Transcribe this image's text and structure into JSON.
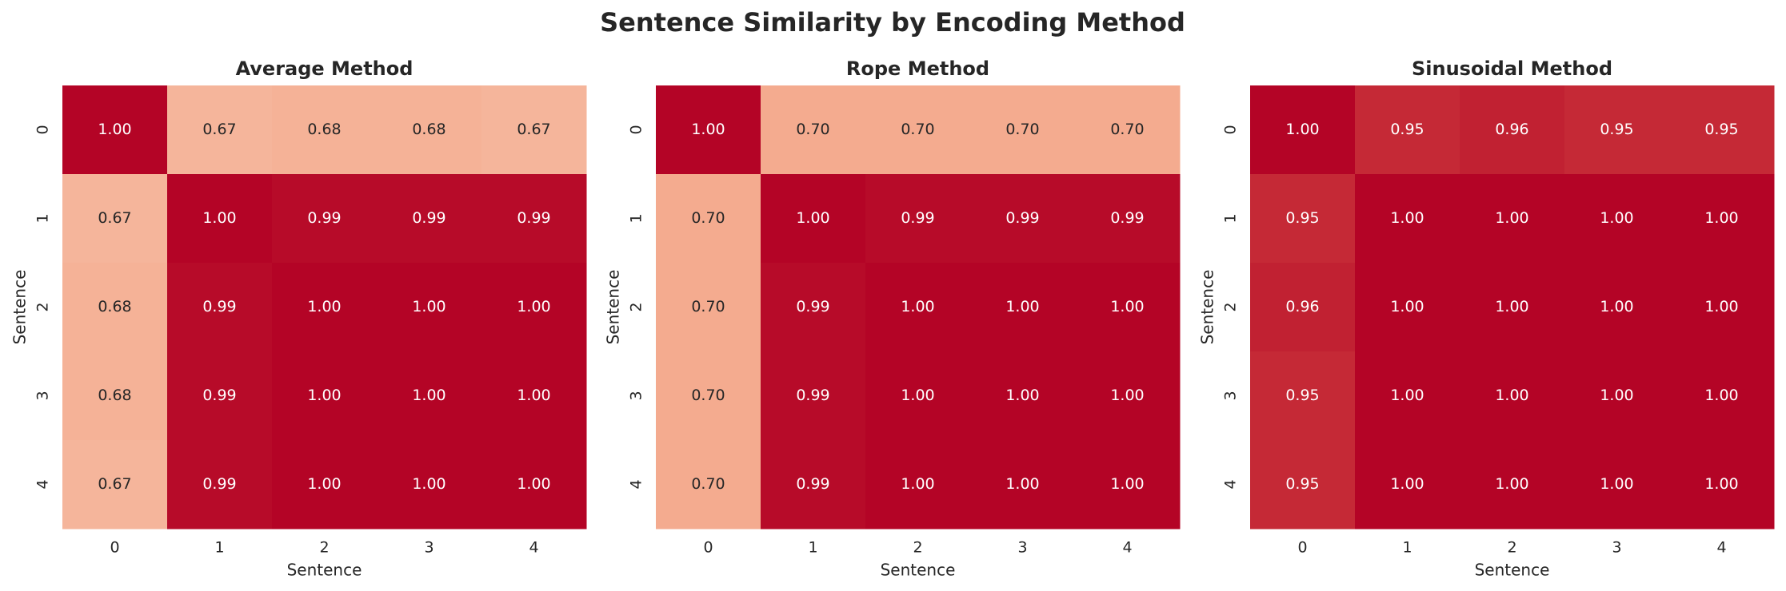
{
  "title": "Sentence Similarity by Encoding Method",
  "chart_data": [
    {
      "type": "heatmap",
      "title": "Average Method",
      "xlabel": "Sentence",
      "ylabel": "Sentence",
      "x_categories": [
        0,
        1,
        2,
        3,
        4
      ],
      "y_categories": [
        0,
        1,
        2,
        3,
        4
      ],
      "colormap": "coolwarm",
      "clim": [
        0,
        1
      ],
      "values": [
        [
          1,
          0.67,
          0.68,
          0.68,
          0.67
        ],
        [
          0.67,
          1,
          0.99,
          0.99,
          0.99
        ],
        [
          0.68,
          0.99,
          1,
          1,
          1
        ],
        [
          0.68,
          0.99,
          1,
          1,
          1
        ],
        [
          0.67,
          0.99,
          1,
          1,
          1
        ]
      ],
      "value_labels": [
        [
          "1.00",
          "0.67",
          "0.68",
          "0.68",
          "0.67"
        ],
        [
          "0.67",
          "1.00",
          "0.99",
          "0.99",
          "0.99"
        ],
        [
          "0.68",
          "0.99",
          "1.00",
          "1.00",
          "1.00"
        ],
        [
          "0.68",
          "0.99",
          "1.00",
          "1.00",
          "1.00"
        ],
        [
          "0.67",
          "0.99",
          "1.00",
          "1.00",
          "1.00"
        ]
      ]
    },
    {
      "type": "heatmap",
      "title": "Rope Method",
      "xlabel": "Sentence",
      "ylabel": "Sentence",
      "x_categories": [
        0,
        1,
        2,
        3,
        4
      ],
      "y_categories": [
        0,
        1,
        2,
        3,
        4
      ],
      "colormap": "coolwarm",
      "clim": [
        0,
        1
      ],
      "values": [
        [
          1,
          0.7,
          0.7,
          0.7,
          0.7
        ],
        [
          0.7,
          1,
          0.99,
          0.99,
          0.99
        ],
        [
          0.7,
          0.99,
          1,
          1,
          1
        ],
        [
          0.7,
          0.99,
          1,
          1,
          1
        ],
        [
          0.7,
          0.99,
          1,
          1,
          1
        ]
      ],
      "value_labels": [
        [
          "1.00",
          "0.70",
          "0.70",
          "0.70",
          "0.70"
        ],
        [
          "0.70",
          "1.00",
          "0.99",
          "0.99",
          "0.99"
        ],
        [
          "0.70",
          "0.99",
          "1.00",
          "1.00",
          "1.00"
        ],
        [
          "0.70",
          "0.99",
          "1.00",
          "1.00",
          "1.00"
        ],
        [
          "0.70",
          "0.99",
          "1.00",
          "1.00",
          "1.00"
        ]
      ]
    },
    {
      "type": "heatmap",
      "title": "Sinusoidal Method",
      "xlabel": "Sentence",
      "ylabel": "Sentence",
      "x_categories": [
        0,
        1,
        2,
        3,
        4
      ],
      "y_categories": [
        0,
        1,
        2,
        3,
        4
      ],
      "colormap": "coolwarm",
      "clim": [
        0,
        1
      ],
      "values": [
        [
          1,
          0.95,
          0.96,
          0.95,
          0.95
        ],
        [
          0.95,
          1,
          1,
          1,
          1
        ],
        [
          0.96,
          1,
          1,
          1,
          1
        ],
        [
          0.95,
          1,
          1,
          1,
          1
        ],
        [
          0.95,
          1,
          1,
          1,
          1
        ]
      ],
      "value_labels": [
        [
          "1.00",
          "0.95",
          "0.96",
          "0.95",
          "0.95"
        ],
        [
          "0.95",
          "1.00",
          "1.00",
          "1.00",
          "1.00"
        ],
        [
          "0.96",
          "1.00",
          "1.00",
          "1.00",
          "1.00"
        ],
        [
          "0.95",
          "1.00",
          "1.00",
          "1.00",
          "1.00"
        ],
        [
          "0.95",
          "1.00",
          "1.00",
          "1.00",
          "1.00"
        ]
      ]
    }
  ]
}
